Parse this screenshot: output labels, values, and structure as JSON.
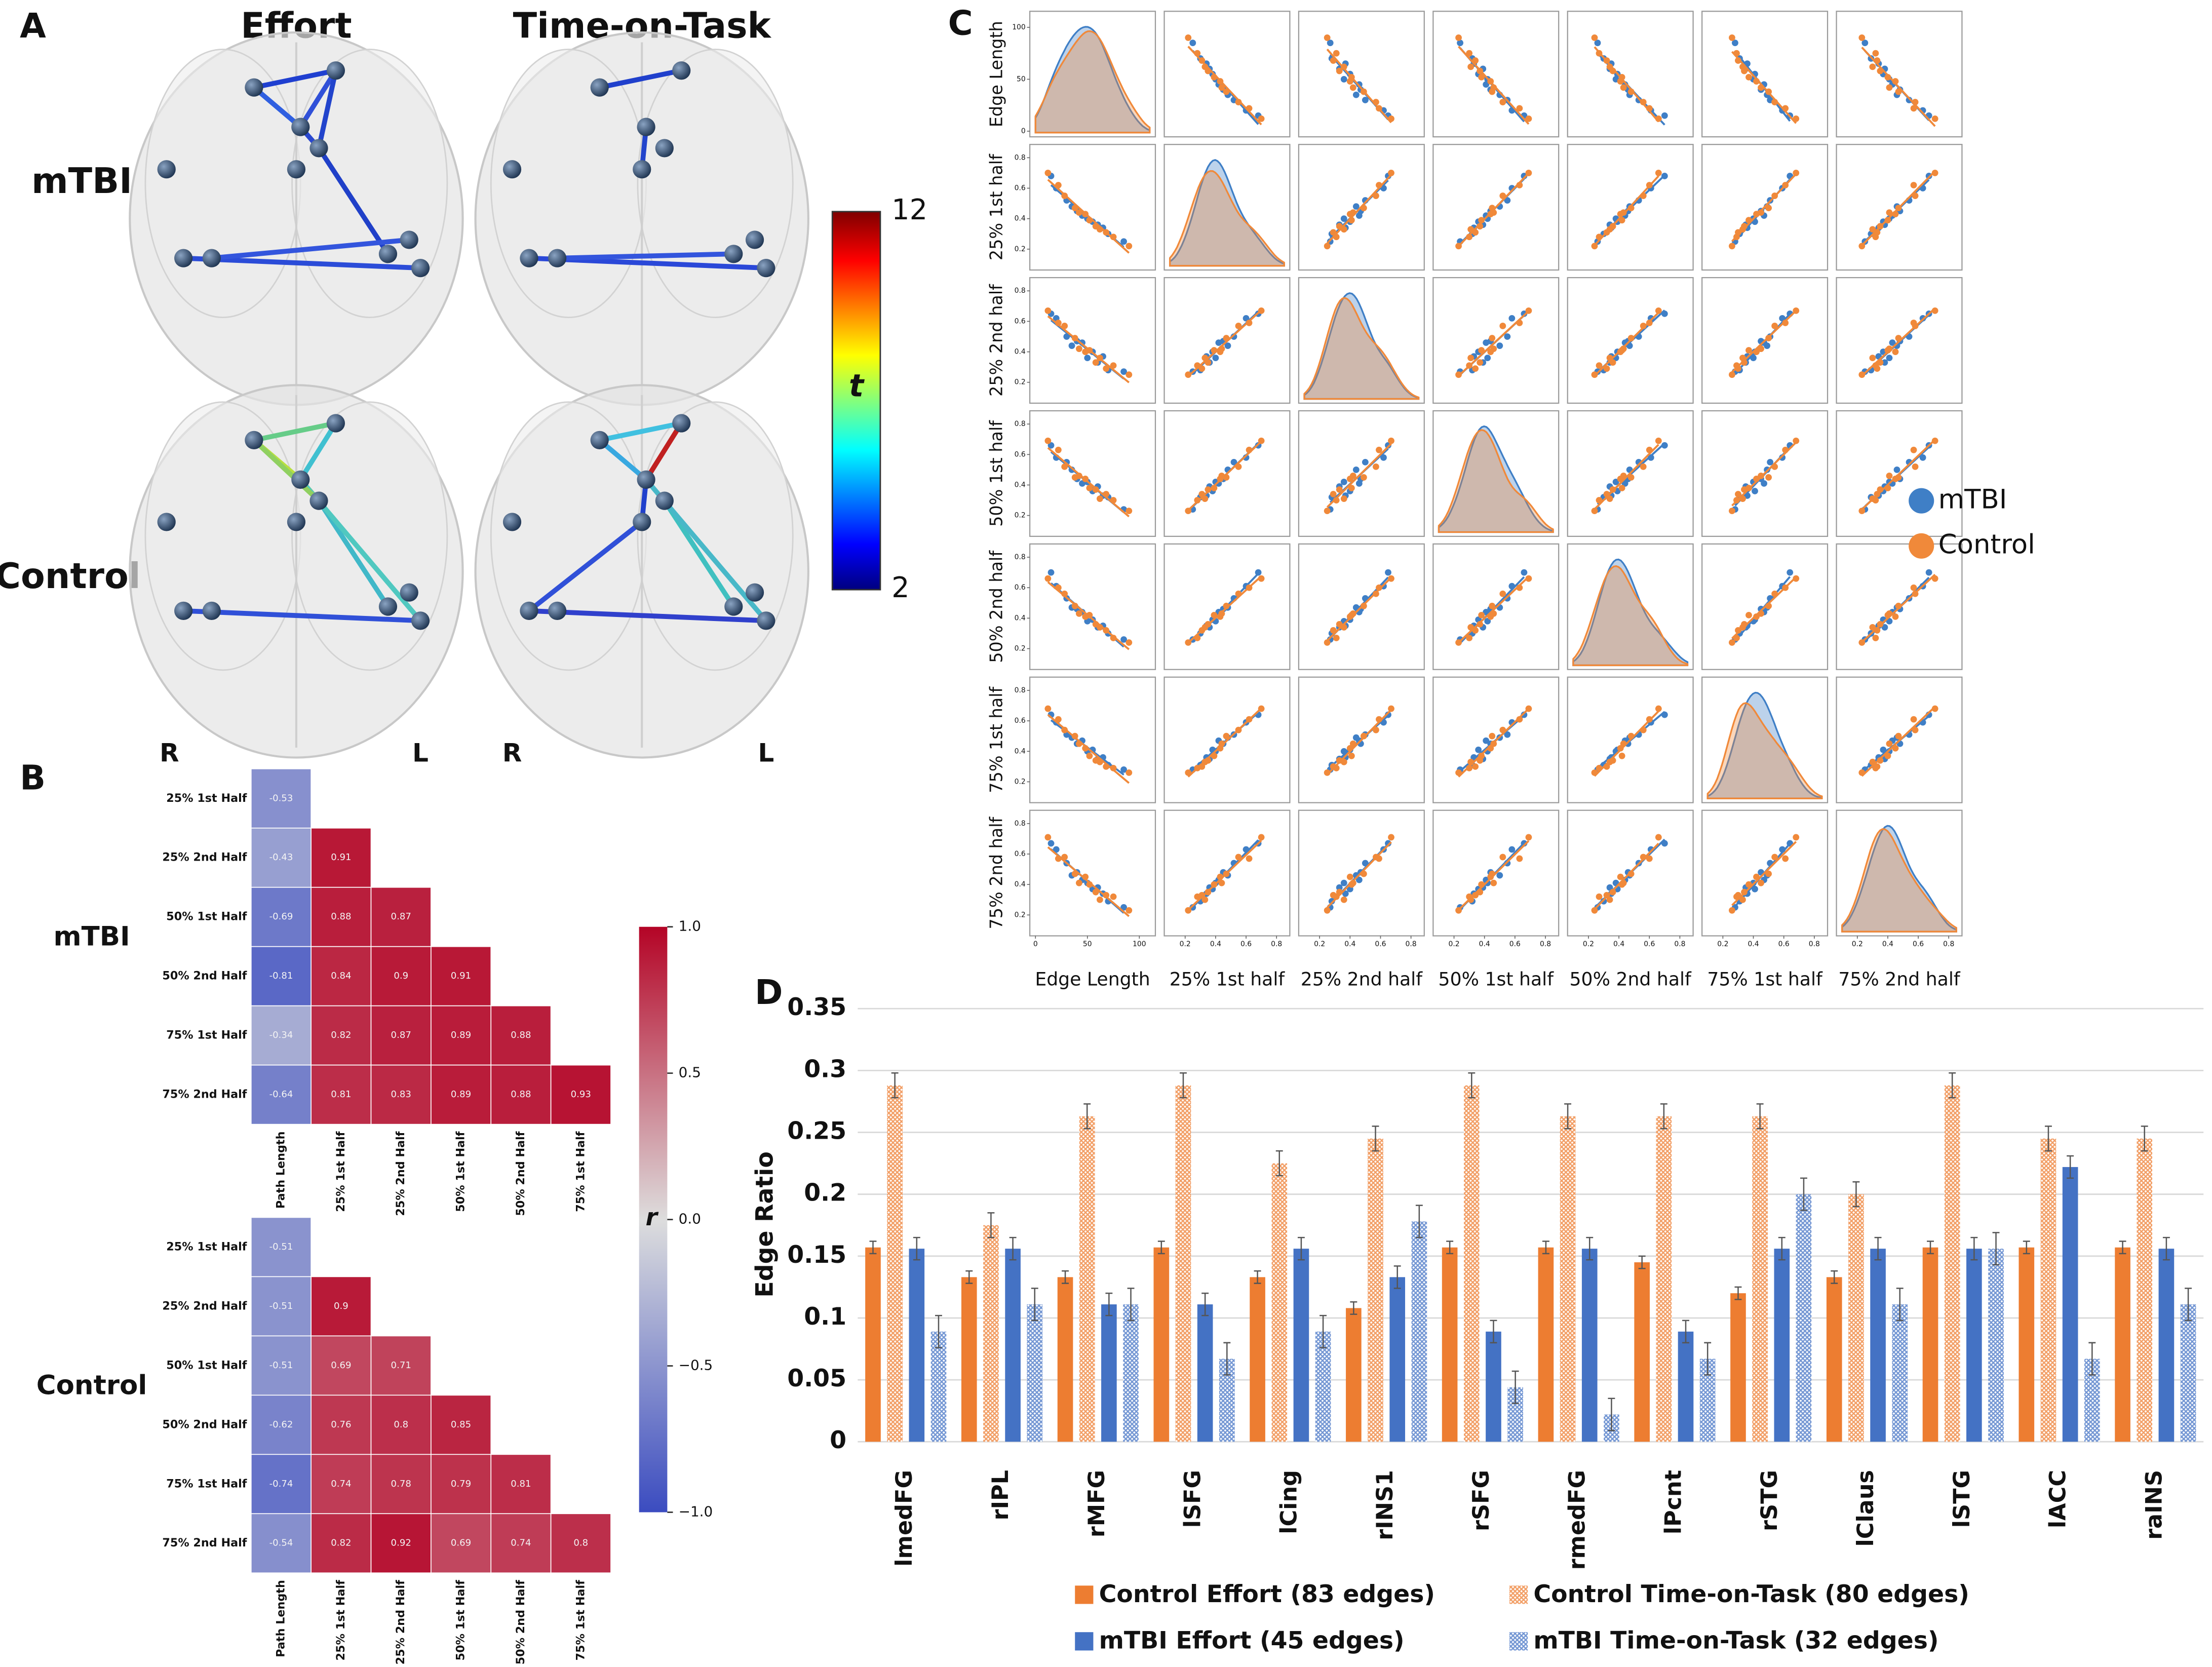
{
  "panel_labels": [
    "A",
    "B",
    "C",
    "D"
  ],
  "brain_panel": {
    "columns": [
      "Effort",
      "Time-on-Task"
    ],
    "rows": [
      "mTBI",
      "Control"
    ],
    "hemisphere_labels": [
      "R",
      "L",
      "R",
      "L"
    ],
    "colorbar": {
      "label": "t",
      "lim": [
        2,
        12
      ],
      "ticks": [
        12,
        2
      ]
    }
  },
  "chart_data": [
    {
      "type": "heatmap",
      "title": "mTBI",
      "rows": [
        "25% 1st Half",
        "25% 2nd Half",
        "50% 1st Half",
        "50% 2nd Half",
        "75% 1st Half",
        "75% 2nd Half"
      ],
      "columns": [
        "Path Length",
        "25% 1st Half",
        "25% 2nd Half",
        "50% 1st Half",
        "50% 2nd Half",
        "75% 1st Half"
      ],
      "values": [
        [
          -0.53,
          null,
          null,
          null,
          null,
          null
        ],
        [
          -0.43,
          0.91,
          null,
          null,
          null,
          null
        ],
        [
          -0.69,
          0.88,
          0.87,
          null,
          null,
          null
        ],
        [
          -0.81,
          0.84,
          0.9,
          0.91,
          null,
          null
        ],
        [
          -0.34,
          0.82,
          0.87,
          0.89,
          0.88,
          null
        ],
        [
          -0.64,
          0.81,
          0.83,
          0.89,
          0.88,
          0.93
        ]
      ],
      "lim": [
        -1,
        1
      ],
      "colorbar": {
        "label": "r",
        "ticks": [
          {
            "value": 1,
            "label": "1.0"
          },
          0.5,
          {
            "value": 0,
            "label": "0.0"
          },
          {
            "value": -0.5,
            "label": "−0.5"
          },
          {
            "value": -1,
            "label": "−1.0"
          }
        ]
      }
    },
    {
      "type": "heatmap",
      "title": "Control",
      "rows": [
        "25% 1st Half",
        "25% 2nd Half",
        "50% 1st Half",
        "50% 2nd Half",
        "75% 1st Half",
        "75% 2nd Half"
      ],
      "columns": [
        "Path Length",
        "25% 1st Half",
        "25% 2nd Half",
        "50% 1st Half",
        "50% 2nd Half",
        "75% 1st Half"
      ],
      "values": [
        [
          -0.51,
          null,
          null,
          null,
          null,
          null
        ],
        [
          -0.51,
          0.9,
          null,
          null,
          null,
          null
        ],
        [
          -0.51,
          0.69,
          0.71,
          null,
          null,
          null
        ],
        [
          -0.62,
          0.76,
          0.8,
          0.85,
          null,
          null
        ],
        [
          -0.74,
          0.74,
          0.78,
          0.79,
          0.81,
          null
        ],
        [
          -0.54,
          0.82,
          0.92,
          0.69,
          0.74,
          0.8
        ]
      ],
      "lim": [
        -1,
        1
      ]
    },
    {
      "type": "pairplot",
      "variables": [
        "Edge Length",
        "25% 1st half",
        "25% 2nd half",
        "50% 1st half",
        "50% 2nd half",
        "75% 1st half",
        "75% 2nd half"
      ],
      "axes": [
        {
          "lim": [
            0,
            110
          ],
          "ticks": [
            0,
            50,
            100
          ]
        },
        {
          "lim": [
            0.1,
            0.85
          ],
          "ticks": [
            0.2,
            0.4,
            0.6,
            0.8
          ]
        },
        {
          "lim": [
            0.1,
            0.85
          ],
          "ticks": [
            0.2,
            0.4,
            0.6,
            0.8
          ]
        },
        {
          "lim": [
            0.1,
            0.85
          ],
          "ticks": [
            0.2,
            0.4,
            0.6,
            0.8
          ]
        },
        {
          "lim": [
            0.1,
            0.85
          ],
          "ticks": [
            0.2,
            0.4,
            0.6,
            0.8
          ]
        },
        {
          "lim": [
            0.1,
            0.85
          ],
          "ticks": [
            0.2,
            0.4,
            0.6,
            0.8
          ]
        },
        {
          "lim": [
            0.1,
            0.85
          ],
          "ticks": [
            0.2,
            0.4,
            0.6,
            0.8
          ]
        }
      ],
      "legend": "right",
      "series": [
        {
          "name": "mTBI",
          "color": "#3f7fc6",
          "values": [
            [
              70,
              0.3,
              0.28,
              0.32,
              0.3,
              0.31,
              0.29
            ],
            [
              55,
              0.38,
              0.4,
              0.36,
              0.39,
              0.41,
              0.37
            ],
            [
              40,
              0.45,
              0.47,
              0.44,
              0.46,
              0.45,
              0.48
            ],
            [
              30,
              0.52,
              0.5,
              0.55,
              0.53,
              0.51,
              0.54
            ],
            [
              85,
              0.25,
              0.27,
              0.24,
              0.26,
              0.28,
              0.25
            ],
            [
              20,
              0.6,
              0.62,
              0.58,
              0.61,
              0.59,
              0.63
            ],
            [
              50,
              0.4,
              0.36,
              0.42,
              0.38,
              0.4,
              0.41
            ],
            [
              65,
              0.34,
              0.37,
              0.33,
              0.35,
              0.36,
              0.34
            ],
            [
              35,
              0.48,
              0.44,
              0.5,
              0.47,
              0.49,
              0.46
            ],
            [
              15,
              0.68,
              0.65,
              0.66,
              0.7,
              0.64,
              0.67
            ],
            [
              60,
              0.36,
              0.33,
              0.39,
              0.34,
              0.35,
              0.38
            ],
            [
              45,
              0.42,
              0.46,
              0.41,
              0.44,
              0.47,
              0.43
            ]
          ]
        },
        {
          "name": "Control",
          "color": "#f0893a",
          "values": [
            [
              75,
              0.28,
              0.31,
              0.3,
              0.27,
              0.29,
              0.32
            ],
            [
              58,
              0.35,
              0.33,
              0.37,
              0.36,
              0.34,
              0.35
            ],
            [
              42,
              0.44,
              0.42,
              0.46,
              0.43,
              0.45,
              0.41
            ],
            [
              28,
              0.55,
              0.57,
              0.52,
              0.56,
              0.54,
              0.58
            ],
            [
              90,
              0.22,
              0.25,
              0.23,
              0.24,
              0.26,
              0.23
            ],
            [
              22,
              0.62,
              0.59,
              0.63,
              0.6,
              0.61,
              0.57
            ],
            [
              52,
              0.39,
              0.41,
              0.38,
              0.42,
              0.37,
              0.4
            ],
            [
              68,
              0.31,
              0.29,
              0.34,
              0.32,
              0.3,
              0.33
            ],
            [
              38,
              0.47,
              0.49,
              0.45,
              0.48,
              0.5,
              0.47
            ],
            [
              12,
              0.7,
              0.67,
              0.69,
              0.66,
              0.68,
              0.71
            ],
            [
              62,
              0.33,
              0.36,
              0.31,
              0.34,
              0.33,
              0.3
            ],
            [
              48,
              0.43,
              0.4,
              0.44,
              0.41,
              0.42,
              0.45
            ]
          ]
        }
      ]
    },
    {
      "type": "bar",
      "ylabel": "Edge Ratio",
      "categories": [
        "lmedFG",
        "rIPL",
        "rMFG",
        "lSFG",
        "lCing",
        "rINS1",
        "rSFG",
        "rmedFG",
        "lPcnt",
        "rSTG",
        "lClaus",
        "lSTG",
        "lACC",
        "raINS"
      ],
      "ylim": [
        0,
        0.35
      ],
      "yticks": [
        0,
        0.05,
        0.1,
        0.15,
        0.2,
        0.25,
        0.3,
        0.35
      ],
      "grid": true,
      "legend": "bottom",
      "series": [
        {
          "name": "Control Effort (83 edges)",
          "color": "#ed7d31",
          "hatch": false,
          "values": [
            0.157,
            0.133,
            0.133,
            0.157,
            0.133,
            0.108,
            0.157,
            0.157,
            0.145,
            0.12,
            0.133,
            0.157,
            0.157,
            0.157
          ],
          "errors": [
            0.005,
            0.005,
            0.005,
            0.005,
            0.005,
            0.005,
            0.005,
            0.005,
            0.005,
            0.005,
            0.005,
            0.005,
            0.005,
            0.005
          ]
        },
        {
          "name": "Control Time-on-Task (80 edges)",
          "color": "#ed7d31",
          "hatch": true,
          "values": [
            0.288,
            0.175,
            0.263,
            0.288,
            0.225,
            0.245,
            0.288,
            0.263,
            0.263,
            0.263,
            0.2,
            0.288,
            0.245,
            0.245
          ],
          "errors": [
            0.01,
            0.01,
            0.01,
            0.01,
            0.01,
            0.01,
            0.01,
            0.01,
            0.01,
            0.01,
            0.01,
            0.01,
            0.01,
            0.01
          ]
        },
        {
          "name": "mTBI Effort (45 edges)",
          "color": "#4472c4",
          "hatch": false,
          "values": [
            0.156,
            0.156,
            0.111,
            0.111,
            0.156,
            0.133,
            0.089,
            0.156,
            0.089,
            0.156,
            0.156,
            0.156,
            0.222,
            0.156
          ],
          "errors": [
            0.009,
            0.009,
            0.009,
            0.009,
            0.009,
            0.009,
            0.009,
            0.009,
            0.009,
            0.009,
            0.009,
            0.009,
            0.009,
            0.009
          ]
        },
        {
          "name": "mTBI Time-on-Task (32 edges)",
          "color": "#4472c4",
          "hatch": true,
          "values": [
            0.089,
            0.111,
            0.111,
            0.067,
            0.089,
            0.178,
            0.044,
            0.022,
            0.067,
            0.2,
            0.111,
            0.156,
            0.067,
            0.111
          ],
          "errors": [
            0.013,
            0.013,
            0.013,
            0.013,
            0.013,
            0.013,
            0.013,
            0.013,
            0.013,
            0.013,
            0.013,
            0.013,
            0.013,
            0.013
          ]
        }
      ]
    }
  ]
}
